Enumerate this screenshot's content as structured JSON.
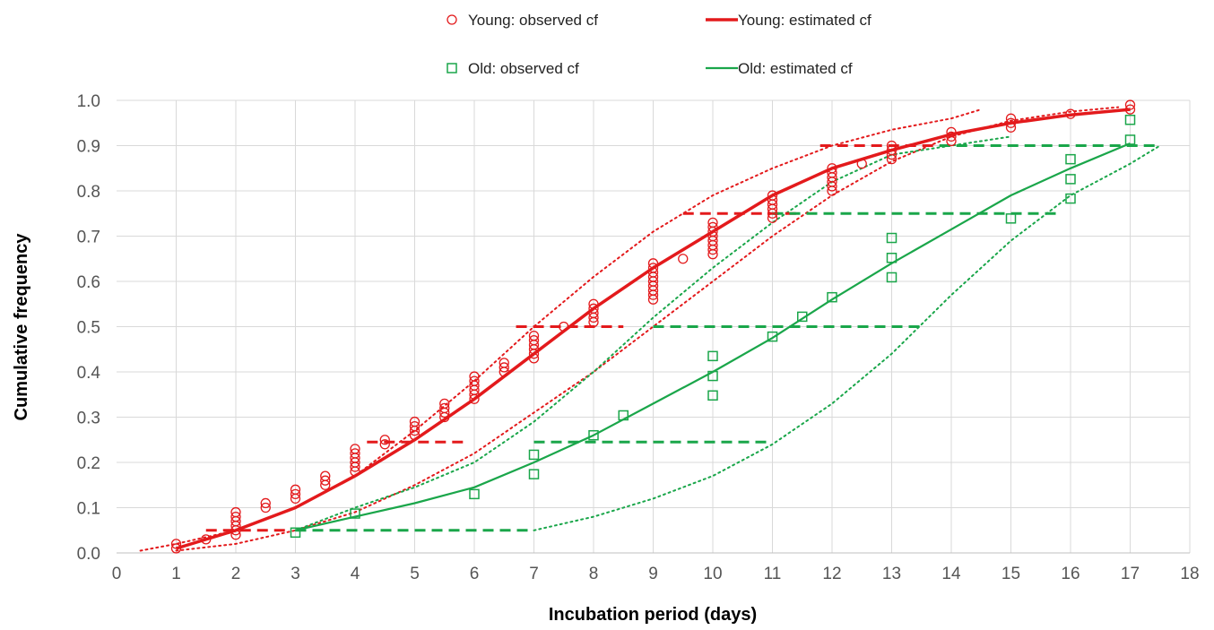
{
  "chart_data": {
    "type": "scatter",
    "title": "",
    "xlabel": "Incubation period (days)",
    "ylabel": "Cumulative frequency",
    "xlim": [
      0,
      18
    ],
    "ylim": [
      0,
      1.0
    ],
    "xticks": [
      "0",
      "1",
      "2",
      "3",
      "4",
      "5",
      "6",
      "7",
      "8",
      "9",
      "10",
      "11",
      "12",
      "13",
      "14",
      "15",
      "16",
      "17",
      "18"
    ],
    "yticks": [
      "0.0",
      "0.1",
      "0.2",
      "0.3",
      "0.4",
      "0.5",
      "0.6",
      "0.7",
      "0.8",
      "0.9",
      "1.0"
    ],
    "grid": true,
    "legend_position": "top",
    "colors": {
      "young": "#e31a1c",
      "old": "#1aa64a"
    },
    "legend": [
      {
        "label": "Young: observed cf",
        "kind": "circle",
        "group": "young"
      },
      {
        "label": "Young: estimated cf",
        "kind": "thick-line",
        "group": "young"
      },
      {
        "label": "Old: observed cf",
        "kind": "square",
        "group": "old"
      },
      {
        "label": "Old: estimated cf",
        "kind": "line",
        "group": "old"
      }
    ],
    "series": [
      {
        "name": "Young: observed cf",
        "group": "young",
        "marker": "circle",
        "points": [
          [
            1,
            0.01
          ],
          [
            1,
            0.02
          ],
          [
            1.5,
            0.03
          ],
          [
            2,
            0.04
          ],
          [
            2,
            0.05
          ],
          [
            2,
            0.06
          ],
          [
            2,
            0.07
          ],
          [
            2,
            0.08
          ],
          [
            2,
            0.09
          ],
          [
            2.5,
            0.1
          ],
          [
            2.5,
            0.11
          ],
          [
            3,
            0.12
          ],
          [
            3,
            0.13
          ],
          [
            3,
            0.14
          ],
          [
            3.5,
            0.15
          ],
          [
            3.5,
            0.16
          ],
          [
            3.5,
            0.17
          ],
          [
            4,
            0.18
          ],
          [
            4,
            0.19
          ],
          [
            4,
            0.2
          ],
          [
            4,
            0.21
          ],
          [
            4,
            0.22
          ],
          [
            4,
            0.23
          ],
          [
            4.5,
            0.24
          ],
          [
            4.5,
            0.25
          ],
          [
            5,
            0.26
          ],
          [
            5,
            0.27
          ],
          [
            5,
            0.28
          ],
          [
            5,
            0.29
          ],
          [
            5.5,
            0.3
          ],
          [
            5.5,
            0.31
          ],
          [
            5.5,
            0.32
          ],
          [
            5.5,
            0.33
          ],
          [
            6,
            0.34
          ],
          [
            6,
            0.35
          ],
          [
            6,
            0.36
          ],
          [
            6,
            0.37
          ],
          [
            6,
            0.38
          ],
          [
            6,
            0.39
          ],
          [
            6.5,
            0.4
          ],
          [
            6.5,
            0.41
          ],
          [
            6.5,
            0.42
          ],
          [
            7,
            0.43
          ],
          [
            7,
            0.44
          ],
          [
            7,
            0.45
          ],
          [
            7,
            0.46
          ],
          [
            7,
            0.47
          ],
          [
            7,
            0.48
          ],
          [
            7.5,
            0.5
          ],
          [
            8,
            0.51
          ],
          [
            8,
            0.52
          ],
          [
            8,
            0.53
          ],
          [
            8,
            0.54
          ],
          [
            8,
            0.55
          ],
          [
            9,
            0.56
          ],
          [
            9,
            0.57
          ],
          [
            9,
            0.58
          ],
          [
            9,
            0.59
          ],
          [
            9,
            0.6
          ],
          [
            9,
            0.61
          ],
          [
            9,
            0.62
          ],
          [
            9,
            0.63
          ],
          [
            9,
            0.64
          ],
          [
            9.5,
            0.65
          ],
          [
            10,
            0.66
          ],
          [
            10,
            0.67
          ],
          [
            10,
            0.68
          ],
          [
            10,
            0.69
          ],
          [
            10,
            0.7
          ],
          [
            10,
            0.71
          ],
          [
            10,
            0.72
          ],
          [
            10,
            0.73
          ],
          [
            11,
            0.74
          ],
          [
            11,
            0.75
          ],
          [
            11,
            0.76
          ],
          [
            11,
            0.77
          ],
          [
            11,
            0.78
          ],
          [
            11,
            0.79
          ],
          [
            12,
            0.8
          ],
          [
            12,
            0.81
          ],
          [
            12,
            0.82
          ],
          [
            12,
            0.83
          ],
          [
            12,
            0.84
          ],
          [
            12,
            0.85
          ],
          [
            12.5,
            0.86
          ],
          [
            13,
            0.87
          ],
          [
            13,
            0.88
          ],
          [
            13,
            0.89
          ],
          [
            13,
            0.9
          ],
          [
            14,
            0.91
          ],
          [
            14,
            0.92
          ],
          [
            14,
            0.93
          ],
          [
            15,
            0.94
          ],
          [
            15,
            0.95
          ],
          [
            15,
            0.96
          ],
          [
            16,
            0.97
          ],
          [
            17,
            0.98
          ],
          [
            17,
            0.99
          ]
        ]
      },
      {
        "name": "Young: estimated cf",
        "group": "young",
        "line": "thick",
        "points": [
          [
            1,
            0.01
          ],
          [
            2,
            0.05
          ],
          [
            3,
            0.1
          ],
          [
            4,
            0.17
          ],
          [
            5,
            0.25
          ],
          [
            6,
            0.34
          ],
          [
            7,
            0.44
          ],
          [
            8,
            0.54
          ],
          [
            9,
            0.63
          ],
          [
            10,
            0.71
          ],
          [
            11,
            0.79
          ],
          [
            12,
            0.85
          ],
          [
            13,
            0.89
          ],
          [
            14,
            0.925
          ],
          [
            15,
            0.95
          ],
          [
            16,
            0.968
          ],
          [
            17,
            0.98
          ]
        ]
      },
      {
        "name": "Old: observed cf",
        "group": "old",
        "marker": "square",
        "points": [
          [
            3,
            0.045
          ],
          [
            4,
            0.087
          ],
          [
            6,
            0.13
          ],
          [
            7,
            0.174
          ],
          [
            7,
            0.217
          ],
          [
            8,
            0.26
          ],
          [
            8.5,
            0.304
          ],
          [
            10,
            0.348
          ],
          [
            10,
            0.391
          ],
          [
            10,
            0.435
          ],
          [
            11,
            0.478
          ],
          [
            11.5,
            0.522
          ],
          [
            12,
            0.565
          ],
          [
            13,
            0.609
          ],
          [
            13,
            0.652
          ],
          [
            13,
            0.696
          ],
          [
            15,
            0.739
          ],
          [
            16,
            0.783
          ],
          [
            16,
            0.826
          ],
          [
            16,
            0.87
          ],
          [
            17,
            0.913
          ],
          [
            17,
            0.957
          ]
        ]
      },
      {
        "name": "Old: estimated cf",
        "group": "old",
        "line": "normal",
        "points": [
          [
            3,
            0.05
          ],
          [
            4,
            0.08
          ],
          [
            5,
            0.11
          ],
          [
            6,
            0.145
          ],
          [
            7,
            0.2
          ],
          [
            8,
            0.26
          ],
          [
            9,
            0.33
          ],
          [
            10,
            0.4
          ],
          [
            11,
            0.475
          ],
          [
            12,
            0.56
          ],
          [
            13,
            0.64
          ],
          [
            14,
            0.715
          ],
          [
            15,
            0.79
          ],
          [
            16,
            0.85
          ],
          [
            17,
            0.905
          ]
        ]
      }
    ],
    "confidence_bands": [
      {
        "group": "young",
        "points": [
          [
            0.4,
            0.005
          ],
          [
            1,
            0.02
          ],
          [
            2,
            0.05
          ],
          [
            3,
            0.1
          ],
          [
            4,
            0.17
          ],
          [
            5,
            0.27
          ],
          [
            6,
            0.38
          ],
          [
            7,
            0.5
          ],
          [
            8,
            0.61
          ],
          [
            9,
            0.71
          ],
          [
            10,
            0.79
          ],
          [
            11,
            0.85
          ],
          [
            12,
            0.9
          ],
          [
            13,
            0.935
          ],
          [
            14,
            0.96
          ],
          [
            14.5,
            0.98
          ]
        ]
      },
      {
        "group": "young",
        "points": [
          [
            1,
            0.005
          ],
          [
            2,
            0.02
          ],
          [
            3,
            0.05
          ],
          [
            4,
            0.09
          ],
          [
            5,
            0.15
          ],
          [
            6,
            0.22
          ],
          [
            7,
            0.31
          ],
          [
            8,
            0.4
          ],
          [
            9,
            0.5
          ],
          [
            10,
            0.6
          ],
          [
            11,
            0.7
          ],
          [
            12,
            0.79
          ],
          [
            13,
            0.865
          ],
          [
            14,
            0.92
          ],
          [
            15,
            0.955
          ],
          [
            16,
            0.975
          ],
          [
            16.8,
            0.985
          ]
        ]
      }
    ],
    "old_bands": [
      {
        "group": "old",
        "points": [
          [
            3,
            0.05
          ],
          [
            4,
            0.1
          ],
          [
            5,
            0.145
          ],
          [
            6,
            0.2
          ],
          [
            7,
            0.29
          ],
          [
            8,
            0.4
          ],
          [
            9,
            0.52
          ],
          [
            10,
            0.63
          ],
          [
            11,
            0.73
          ],
          [
            12,
            0.82
          ],
          [
            13,
            0.88
          ],
          [
            14,
            0.9
          ],
          [
            15,
            0.92
          ]
        ]
      },
      {
        "group": "old",
        "points": [
          [
            7,
            0.05
          ],
          [
            8,
            0.08
          ],
          [
            9,
            0.12
          ],
          [
            10,
            0.17
          ],
          [
            11,
            0.24
          ],
          [
            12,
            0.33
          ],
          [
            13,
            0.44
          ],
          [
            14,
            0.57
          ],
          [
            15,
            0.69
          ],
          [
            16,
            0.79
          ],
          [
            17,
            0.86
          ],
          [
            17.5,
            0.9
          ]
        ]
      }
    ],
    "percentile_segments": [
      {
        "group": "young",
        "y": 0.05,
        "x_from": 1.5,
        "x_to": 2.9
      },
      {
        "group": "young",
        "y": 0.245,
        "x_from": 4.2,
        "x_to": 5.9
      },
      {
        "group": "young",
        "y": 0.5,
        "x_from": 6.7,
        "x_to": 8.5
      },
      {
        "group": "young",
        "y": 0.75,
        "x_from": 9.5,
        "x_to": 11.4
      },
      {
        "group": "young",
        "y": 0.9,
        "x_from": 11.8,
        "x_to": 13.7
      },
      {
        "group": "old",
        "y": 0.05,
        "x_from": 3.0,
        "x_to": 7.0
      },
      {
        "group": "old",
        "y": 0.245,
        "x_from": 7.0,
        "x_to": 11.0
      },
      {
        "group": "old",
        "y": 0.5,
        "x_from": 9.0,
        "x_to": 13.5
      },
      {
        "group": "old",
        "y": 0.75,
        "x_from": 11.0,
        "x_to": 15.8
      },
      {
        "group": "old",
        "y": 0.9,
        "x_from": 13.8,
        "x_to": 17.5
      }
    ]
  }
}
